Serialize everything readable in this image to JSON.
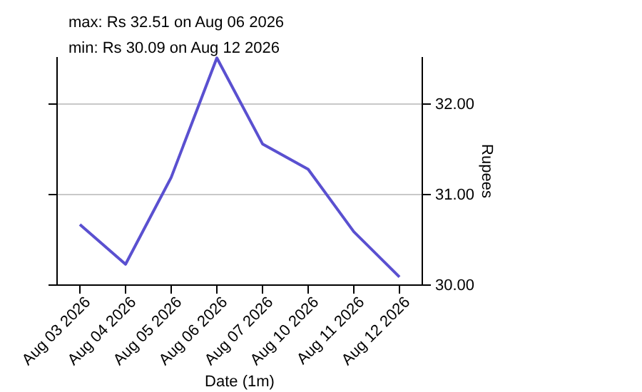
{
  "chart_data": {
    "type": "line",
    "xlabel": "Date (1m)",
    "ylabel": "Rupees",
    "annotations": [
      "max: Rs 32.51 on Aug 06 2026",
      "min: Rs 30.09 on Aug 12 2026"
    ],
    "categories": [
      "Aug 03 2026",
      "Aug 04 2026",
      "Aug 05 2026",
      "Aug 06 2026",
      "Aug 07 2026",
      "Aug 10 2026",
      "Aug 11 2026",
      "Aug 12 2026"
    ],
    "series": [
      {
        "color": "#5a50d0",
        "values": [
          30.67,
          30.23,
          31.19,
          32.51,
          31.56,
          31.28,
          30.59,
          30.09
        ]
      }
    ],
    "ylim": [
      30,
      32.52
    ],
    "yticks": [
      {
        "value": 30,
        "label": "30.00"
      },
      {
        "value": 31,
        "label": "31.00"
      },
      {
        "value": 32,
        "label": "32.00"
      }
    ],
    "grid": "y",
    "line_style": "solid",
    "marker": "none"
  }
}
